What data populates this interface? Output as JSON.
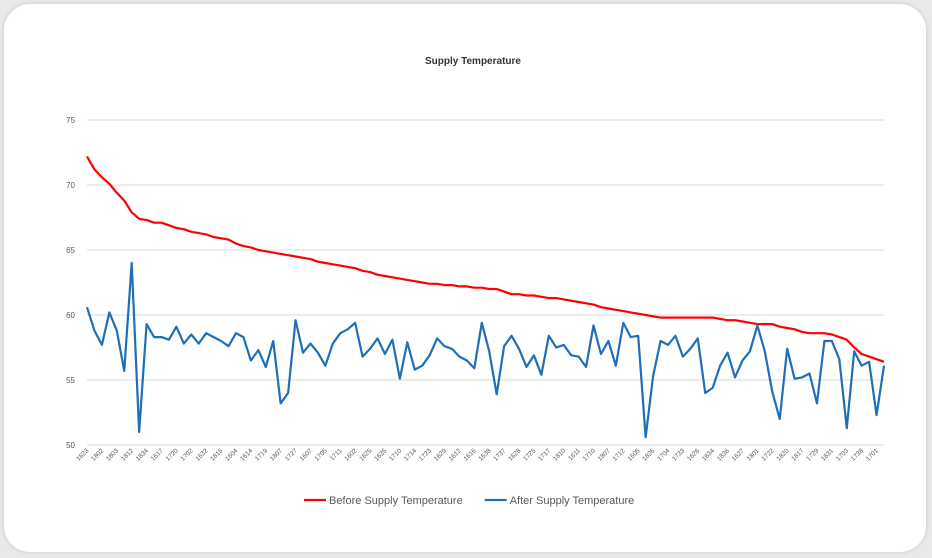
{
  "chart_data": {
    "type": "line",
    "title": "Supply Temperature",
    "categories": [
      "1623",
      null,
      "1802",
      null,
      "1803",
      null,
      "1812",
      null,
      "1834",
      null,
      "1617",
      null,
      "1720",
      null,
      "1702",
      null,
      "1632",
      null,
      "1815",
      null,
      "1604",
      null,
      "1614",
      null,
      "1719",
      null,
      "1807",
      null,
      "1727",
      null,
      "1607",
      null,
      "1705",
      null,
      "1711",
      null,
      "1602",
      null,
      "1625",
      null,
      "1635",
      null,
      "1710",
      null,
      "1714",
      null,
      "1723",
      null,
      "1629",
      null,
      "1612",
      null,
      "1616",
      null,
      "1638",
      null,
      "1737",
      null,
      "1628",
      null,
      "1725",
      null,
      "1717",
      null,
      "1810",
      null,
      "1611",
      null,
      "1710",
      null,
      "1807",
      null,
      "1712",
      null,
      "1605",
      null,
      "1826",
      null,
      "1704",
      null,
      "1733",
      null,
      "1626",
      null,
      "1634",
      null,
      "1836",
      null,
      "1627",
      null,
      "1801",
      null,
      "1722",
      null,
      "1820",
      null,
      "1817",
      null,
      "1729",
      null,
      "1831",
      null,
      "1703",
      null,
      "1738",
      null,
      "1701",
      null
    ],
    "series": [
      {
        "name": "Before Supply Temperature",
        "color": "#ff0000",
        "values": [
          72.2,
          71.2,
          70.6,
          70.1,
          69.4,
          68.8,
          67.9,
          67.4,
          67.3,
          67.1,
          67.1,
          66.9,
          66.7,
          66.6,
          66.4,
          66.3,
          66.2,
          66.0,
          65.9,
          65.8,
          65.5,
          65.3,
          65.2,
          65.0,
          64.9,
          64.8,
          64.7,
          64.6,
          64.5,
          64.4,
          64.3,
          64.1,
          64.0,
          63.9,
          63.8,
          63.7,
          63.6,
          63.4,
          63.3,
          63.1,
          63.0,
          62.9,
          62.8,
          62.7,
          62.6,
          62.5,
          62.4,
          62.4,
          62.3,
          62.3,
          62.2,
          62.2,
          62.1,
          62.1,
          62.0,
          62.0,
          61.8,
          61.6,
          61.6,
          61.5,
          61.5,
          61.4,
          61.3,
          61.3,
          61.2,
          61.1,
          61.0,
          60.9,
          60.8,
          60.6,
          60.5,
          60.4,
          60.3,
          60.2,
          60.1,
          60.0,
          59.9,
          59.8,
          59.8,
          59.8,
          59.8,
          59.8,
          59.8,
          59.8,
          59.8,
          59.7,
          59.6,
          59.6,
          59.5,
          59.4,
          59.3,
          59.3,
          59.3,
          59.1,
          59.0,
          58.9,
          58.7,
          58.6,
          58.6,
          58.6,
          58.5,
          58.3,
          58.1,
          57.5,
          57.0,
          56.8,
          56.6,
          56.4
        ]
      },
      {
        "name": "After Supply Temperature",
        "color": "#1f6fb8",
        "values": [
          60.6,
          58.8,
          57.7,
          60.2,
          58.8,
          55.7,
          64.0,
          51.0,
          59.3,
          58.3,
          58.3,
          58.1,
          59.1,
          57.8,
          58.5,
          57.8,
          58.6,
          58.3,
          58.0,
          57.6,
          58.6,
          58.3,
          56.5,
          57.3,
          56.0,
          58.0,
          53.2,
          54.0,
          59.6,
          57.1,
          57.8,
          57.1,
          56.1,
          57.8,
          58.6,
          58.9,
          59.4,
          56.8,
          57.4,
          58.2,
          57.0,
          58.1,
          55.1,
          57.9,
          55.8,
          56.1,
          56.9,
          58.2,
          57.6,
          57.4,
          56.8,
          56.5,
          55.9,
          59.4,
          57.2,
          53.9,
          57.6,
          58.4,
          57.4,
          56.0,
          56.9,
          55.4,
          58.4,
          57.5,
          57.7,
          56.9,
          56.8,
          56.0,
          59.2,
          57.0,
          58.0,
          56.1,
          59.4,
          58.3,
          58.4,
          50.6,
          55.3,
          58.0,
          57.7,
          58.4,
          56.8,
          57.4,
          58.2,
          54.0,
          54.4,
          56.1,
          57.1,
          55.2,
          56.5,
          57.2,
          59.2,
          57.2,
          54.1,
          52.0,
          57.4,
          55.1,
          55.2,
          55.5,
          53.2,
          58.0,
          58.0,
          56.6,
          51.3,
          57.2,
          56.1,
          56.4,
          52.3,
          56.1
        ]
      }
    ],
    "ylim": [
      50,
      75
    ],
    "yticks": [
      50,
      55,
      60,
      65,
      70,
      75
    ],
    "grid": true,
    "legend": "bottom"
  }
}
